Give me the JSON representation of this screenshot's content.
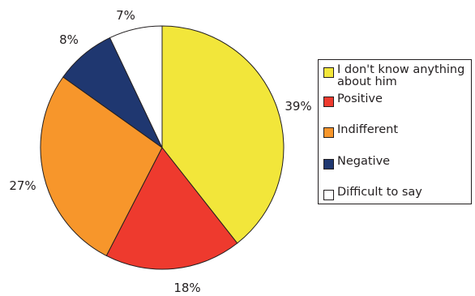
{
  "chart_data": {
    "type": "pie",
    "slices": [
      {
        "label": "I don't know anything about him",
        "value": 39,
        "display": "39%",
        "color": "#f2e63a"
      },
      {
        "label": "Positive",
        "value": 18,
        "display": "18%",
        "color": "#ee3a2e"
      },
      {
        "label": "Indifferent",
        "value": 27,
        "display": "27%",
        "color": "#f7962b"
      },
      {
        "label": "Negative",
        "value": 8,
        "display": "8%",
        "color": "#1f3770"
      },
      {
        "label": "Difficult to say",
        "value": 7,
        "display": "7%",
        "color": "#ffffff"
      }
    ],
    "start": "12 o'clock",
    "direction": "clockwise",
    "legend_position": "right"
  }
}
